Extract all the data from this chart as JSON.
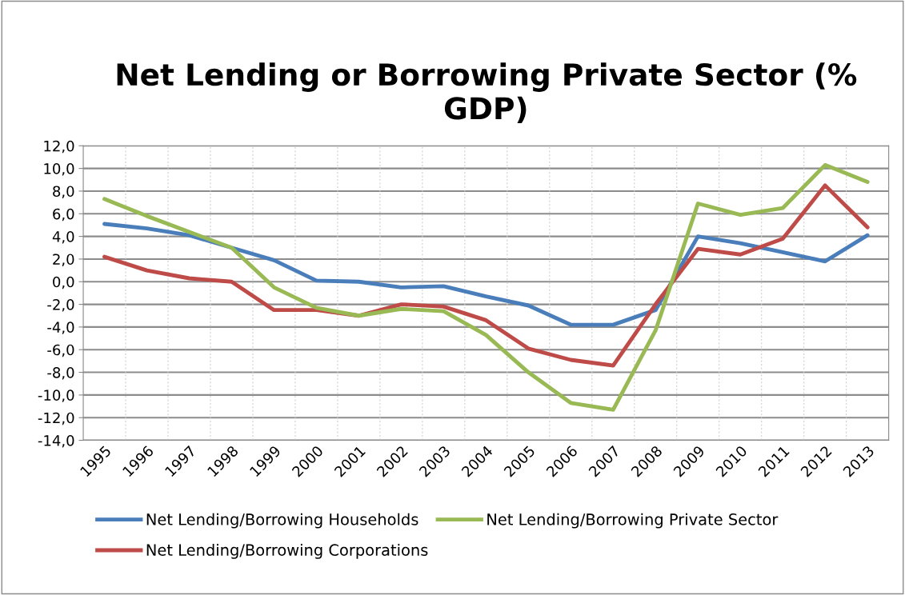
{
  "chart_data": {
    "type": "line",
    "title": "Net Lending or Borrowing Private Sector (% GDP)",
    "categories": [
      "1995",
      "1996",
      "1997",
      "1998",
      "1999",
      "2000",
      "2001",
      "2002",
      "2003",
      "2004",
      "2005",
      "2006",
      "2007",
      "2008",
      "2009",
      "2010",
      "2011",
      "2012",
      "2013"
    ],
    "series": [
      {
        "name": "Net Lending/Borrowing Households",
        "color": "#4a7ebb",
        "values": [
          5.1,
          4.7,
          4.1,
          3.0,
          1.9,
          0.1,
          0.0,
          -0.5,
          -0.4,
          -1.3,
          -2.1,
          -3.8,
          -3.8,
          -2.5,
          4.0,
          3.4,
          2.6,
          1.8,
          4.1
        ]
      },
      {
        "name": "Net Lending/Borrowing Corporations",
        "color": "#be4b48",
        "values": [
          2.2,
          1.0,
          0.3,
          0.0,
          -2.5,
          -2.5,
          -3.0,
          -2.0,
          -2.2,
          -3.4,
          -5.9,
          -6.9,
          -7.4,
          -2.0,
          2.9,
          2.4,
          3.8,
          8.5,
          4.8
        ]
      },
      {
        "name": "Net Lending/Borrowing Private Sector",
        "color": "#98b954",
        "values": [
          7.3,
          5.8,
          4.4,
          3.0,
          -0.5,
          -2.3,
          -3.0,
          -2.4,
          -2.6,
          -4.7,
          -8.0,
          -10.7,
          -11.3,
          -4.3,
          6.9,
          5.9,
          6.5,
          10.3,
          8.8
        ]
      }
    ],
    "ylim": [
      -14,
      12
    ],
    "yticks": [
      {
        "value": -14,
        "label": "-14,0"
      },
      {
        "value": -12,
        "label": "-12,0"
      },
      {
        "value": -10,
        "label": "-10,0"
      },
      {
        "value": -8,
        "label": "-8,0"
      },
      {
        "value": -6,
        "label": "-6,0"
      },
      {
        "value": -4,
        "label": "-4,0"
      },
      {
        "value": -2,
        "label": "-2,0"
      },
      {
        "value": 0,
        "label": "0,0"
      },
      {
        "value": 2,
        "label": "2,0"
      },
      {
        "value": 4,
        "label": "4,0"
      },
      {
        "value": 6,
        "label": "6,0"
      },
      {
        "value": 8,
        "label": "8,0"
      },
      {
        "value": 10,
        "label": "10,0"
      },
      {
        "value": 12,
        "label": "12,0"
      }
    ],
    "grid": true,
    "legend": "bottom",
    "marker": "none",
    "line_style": "solid"
  }
}
